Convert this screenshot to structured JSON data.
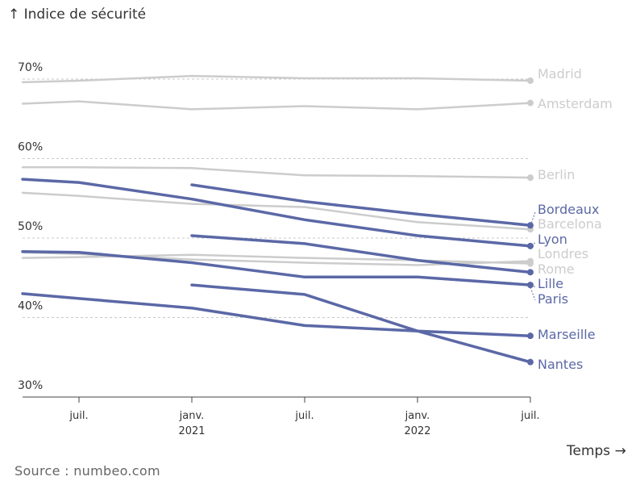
{
  "chart_data": {
    "type": "line",
    "ylabel": "↑ Indice de sécurité",
    "xlabel": "Temps →",
    "ylim": [
      30,
      72
    ],
    "xlim": [
      "2020-04",
      "2022-07"
    ],
    "y_ticks": [
      {
        "value": 70,
        "label": "70%"
      },
      {
        "value": 60,
        "label": "60%"
      },
      {
        "value": 50,
        "label": "50%"
      },
      {
        "value": 40,
        "label": "40%"
      },
      {
        "value": 30,
        "label": "30%"
      }
    ],
    "x_ticks": [
      {
        "x": "2020-07",
        "label": "juil.",
        "sub": ""
      },
      {
        "x": "2021-01",
        "label": "janv.",
        "sub": "2021"
      },
      {
        "x": "2021-07",
        "label": "juil.",
        "sub": ""
      },
      {
        "x": "2022-01",
        "label": "janv.",
        "sub": "2022"
      },
      {
        "x": "2022-07",
        "label": "juil.",
        "sub": ""
      }
    ],
    "colors": {
      "highlight": "#5b68a6",
      "muted": "#cccccc",
      "grid": "#c8c8c8"
    },
    "series": [
      {
        "name": "Madrid",
        "highlight": false,
        "points": [
          [
            "2020-04",
            69.6
          ],
          [
            "2020-07",
            69.8
          ],
          [
            "2021-01",
            70.4
          ],
          [
            "2021-07",
            70.1
          ],
          [
            "2022-01",
            70.1
          ],
          [
            "2022-07",
            69.8
          ]
        ]
      },
      {
        "name": "Amsterdam",
        "highlight": false,
        "points": [
          [
            "2020-04",
            66.9
          ],
          [
            "2020-07",
            67.2
          ],
          [
            "2021-01",
            66.2
          ],
          [
            "2021-07",
            66.6
          ],
          [
            "2022-01",
            66.2
          ],
          [
            "2022-07",
            67.0
          ]
        ]
      },
      {
        "name": "Berlin",
        "highlight": false,
        "points": [
          [
            "2020-04",
            58.9
          ],
          [
            "2020-07",
            58.9
          ],
          [
            "2021-01",
            58.8
          ],
          [
            "2021-07",
            57.9
          ],
          [
            "2022-01",
            57.8
          ],
          [
            "2022-07",
            57.6
          ]
        ]
      },
      {
        "name": "Barcelona",
        "highlight": false,
        "points": [
          [
            "2020-04",
            55.7
          ],
          [
            "2020-07",
            55.3
          ],
          [
            "2021-01",
            54.3
          ],
          [
            "2021-07",
            53.9
          ],
          [
            "2022-01",
            52.0
          ],
          [
            "2022-07",
            51.1
          ]
        ]
      },
      {
        "name": "Londres",
        "highlight": false,
        "points": [
          [
            "2020-04",
            47.5
          ],
          [
            "2020-07",
            47.6
          ],
          [
            "2021-01",
            47.9
          ],
          [
            "2021-07",
            47.5
          ],
          [
            "2022-01",
            47.2
          ],
          [
            "2022-07",
            46.8
          ]
        ]
      },
      {
        "name": "Rome",
        "highlight": false,
        "points": [
          [
            "2020-04",
            48.2
          ],
          [
            "2020-07",
            48.0
          ],
          [
            "2021-01",
            47.3
          ],
          [
            "2021-07",
            46.9
          ],
          [
            "2022-01",
            46.6
          ],
          [
            "2022-07",
            47.1
          ]
        ]
      },
      {
        "name": "Bordeaux",
        "highlight": true,
        "points": [
          [
            "2021-01",
            56.7
          ],
          [
            "2021-07",
            54.6
          ],
          [
            "2022-01",
            53.0
          ],
          [
            "2022-07",
            51.6
          ]
        ]
      },
      {
        "name": "Barcelona_hidden",
        "highlight": false,
        "points": []
      },
      {
        "name": "Lyon",
        "highlight": true,
        "points": [
          [
            "2020-04",
            57.4
          ],
          [
            "2020-07",
            57.0
          ],
          [
            "2021-01",
            54.9
          ],
          [
            "2021-07",
            52.3
          ],
          [
            "2022-01",
            50.3
          ],
          [
            "2022-07",
            49.0
          ]
        ]
      },
      {
        "name": "Lille",
        "highlight": true,
        "points": [
          [
            "2021-01",
            50.3
          ],
          [
            "2021-07",
            49.3
          ],
          [
            "2022-01",
            47.2
          ],
          [
            "2022-07",
            45.7
          ]
        ]
      },
      {
        "name": "Paris",
        "highlight": true,
        "points": [
          [
            "2020-04",
            48.3
          ],
          [
            "2020-07",
            48.2
          ],
          [
            "2021-01",
            46.9
          ],
          [
            "2021-07",
            45.1
          ],
          [
            "2022-01",
            45.1
          ],
          [
            "2022-07",
            44.1
          ]
        ]
      },
      {
        "name": "Marseille",
        "highlight": true,
        "points": [
          [
            "2021-01",
            44.1
          ],
          [
            "2021-07",
            42.9
          ],
          [
            "2022-01",
            38.3
          ],
          [
            "2022-07",
            34.4
          ]
        ]
      },
      {
        "name": "Nantes",
        "highlight": true,
        "points": [
          [
            "2020-04",
            43.0
          ],
          [
            "2020-07",
            42.4
          ],
          [
            "2021-01",
            41.2
          ],
          [
            "2021-07",
            39.0
          ],
          [
            "2022-01",
            38.3
          ],
          [
            "2022-07",
            37.7
          ]
        ]
      }
    ],
    "end_labels": [
      {
        "name": "Madrid",
        "text": "Madrid",
        "highlight": false
      },
      {
        "name": "Amsterdam",
        "text": "Amsterdam",
        "highlight": false
      },
      {
        "name": "Berlin",
        "text": "Berlin",
        "highlight": false
      },
      {
        "name": "Bordeaux",
        "text": "Bordeaux",
        "highlight": true
      },
      {
        "name": "Barcelona",
        "text": "Barcelona",
        "highlight": false
      },
      {
        "name": "Lyon",
        "text": "Lyon",
        "highlight": true
      },
      {
        "name": "Londres",
        "text": "Londres",
        "highlight": false
      },
      {
        "name": "Rome",
        "text": "Rome",
        "highlight": false
      },
      {
        "name": "Lille",
        "text": "Lille",
        "highlight": true
      },
      {
        "name": "Paris",
        "text": "Paris",
        "highlight": true
      },
      {
        "name": "Marseille",
        "text": "Marseille",
        "highlight": true
      },
      {
        "name": "Nantes",
        "text": "Nantes",
        "highlight": true
      }
    ]
  },
  "source": "Source : numbeo.com"
}
